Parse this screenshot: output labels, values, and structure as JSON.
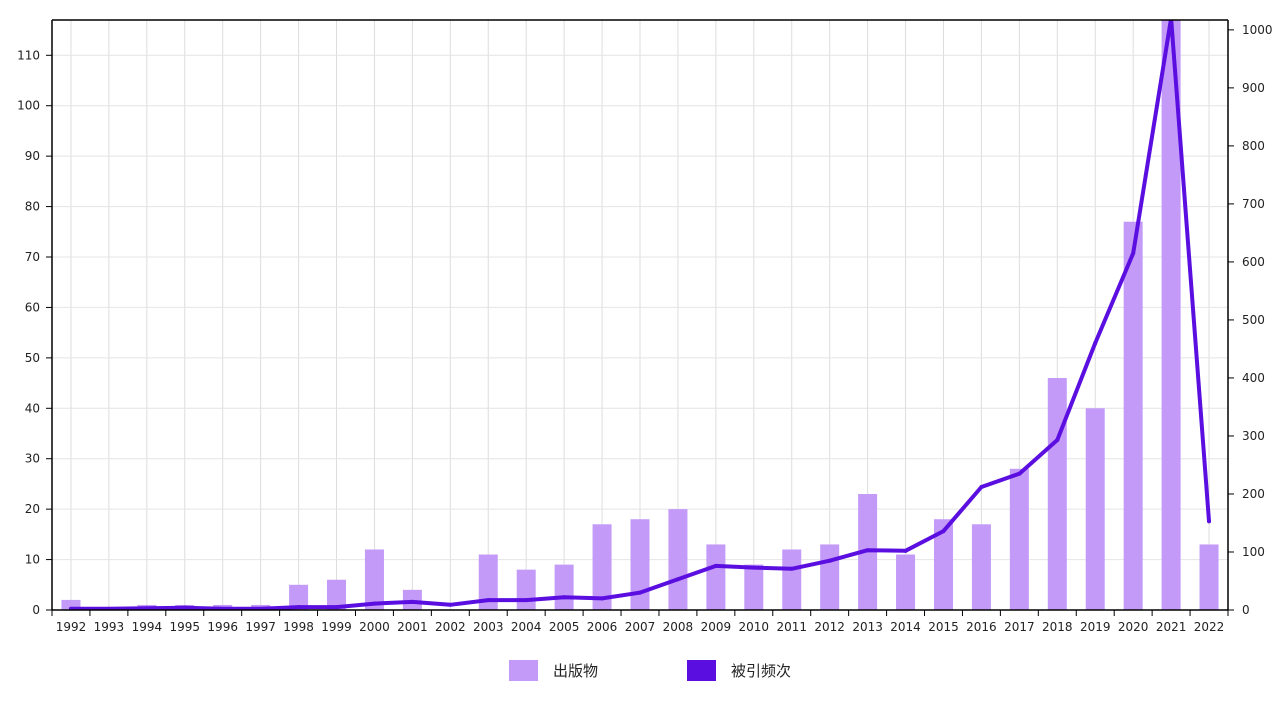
{
  "chart_data": {
    "type": "bar+line",
    "categories": [
      "1992",
      "1993",
      "1994",
      "1995",
      "1996",
      "1997",
      "1998",
      "1999",
      "2000",
      "2001",
      "2002",
      "2003",
      "2004",
      "2005",
      "2006",
      "2007",
      "2008",
      "2009",
      "2010",
      "2011",
      "2012",
      "2013",
      "2014",
      "2015",
      "2016",
      "2017",
      "2018",
      "2019",
      "2020",
      "2021",
      "2022"
    ],
    "series": [
      {
        "name": "出版物",
        "type": "bar",
        "axis": "left",
        "color": "#c39af8",
        "values": [
          2,
          0,
          1,
          1,
          1,
          1,
          5,
          6,
          12,
          4,
          0,
          11,
          8,
          9,
          17,
          18,
          20,
          13,
          9,
          12,
          13,
          23,
          11,
          18,
          17,
          28,
          46,
          40,
          77,
          120,
          13
        ]
      },
      {
        "name": "被引频次",
        "type": "line",
        "axis": "right",
        "color": "#5b0ee0",
        "values": [
          2,
          2,
          3,
          4,
          2,
          2,
          5,
          5,
          11,
          14,
          9,
          17,
          17,
          22,
          20,
          30,
          53,
          76,
          73,
          71,
          85,
          103,
          102,
          136,
          212,
          235,
          293,
          460,
          615,
          1020,
          153
        ]
      }
    ],
    "y_left": {
      "min": 0,
      "max": 117,
      "ticks": [
        0,
        10,
        20,
        30,
        40,
        50,
        60,
        70,
        80,
        90,
        100,
        110
      ]
    },
    "y_right": {
      "min": 0,
      "max": 1017,
      "ticks": [
        0,
        100,
        200,
        300,
        400,
        500,
        600,
        700,
        800,
        900,
        1000
      ]
    },
    "grid": true,
    "legend_position": "bottom-center",
    "title": "",
    "xlabel": "",
    "ylabel": ""
  }
}
